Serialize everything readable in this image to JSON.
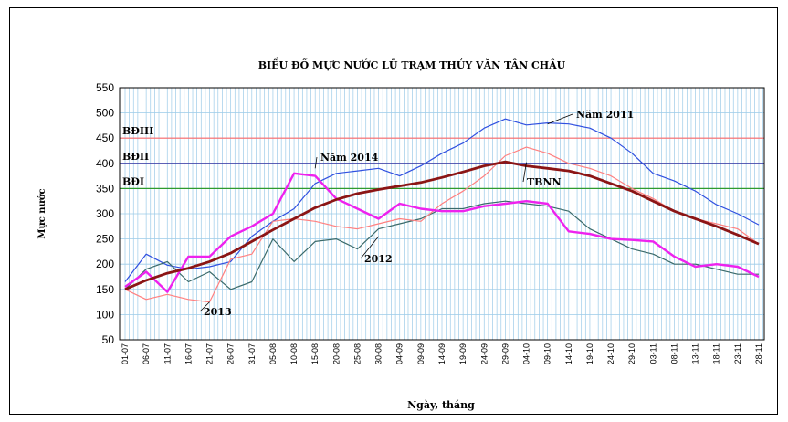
{
  "chart_data": {
    "type": "line",
    "title": "BIỂU ĐỒ MỰC NƯỚC LŨ TRẠM THỦY VĂN TÂN CHÂU",
    "xlabel": "Ngày, tháng",
    "ylabel": "Mực nước",
    "ylim": [
      50,
      550
    ],
    "yticks": [
      50,
      100,
      150,
      200,
      250,
      300,
      350,
      400,
      450,
      500,
      550
    ],
    "grid": true,
    "categories": [
      "01-07",
      "06-07",
      "11-07",
      "16-07",
      "21-07",
      "26-07",
      "31-07",
      "05-08",
      "10-08",
      "15-08",
      "20-08",
      "25-08",
      "30-08",
      "04-09",
      "09-09",
      "14-09",
      "19-09",
      "24-09",
      "29-09",
      "04-10",
      "09-10",
      "14-10",
      "19-10",
      "24-10",
      "29-10",
      "03-11",
      "08-11",
      "13-11",
      "18-11",
      "23-11",
      "28-11"
    ],
    "thresholds": [
      {
        "name": "BĐIII",
        "value": 450,
        "color": "#ff6a6a"
      },
      {
        "name": "BĐII",
        "value": 400,
        "color": "#3030a0"
      },
      {
        "name": "BĐI",
        "value": 350,
        "color": "#2e9b2e"
      }
    ],
    "series": [
      {
        "name": "Năm 2011",
        "color": "#3050e0",
        "values": [
          165,
          220,
          198,
          190,
          195,
          205,
          255,
          285,
          310,
          360,
          380,
          385,
          390,
          375,
          395,
          420,
          440,
          470,
          488,
          476,
          480,
          478,
          470,
          450,
          420,
          380,
          365,
          345,
          318,
          300,
          278
        ]
      },
      {
        "name": "2012",
        "color": "#3a6a6a",
        "values": [
          150,
          190,
          205,
          165,
          185,
          150,
          165,
          250,
          205,
          245,
          250,
          230,
          270,
          280,
          290,
          310,
          310,
          320,
          325,
          320,
          315,
          305,
          270,
          250,
          230,
          220,
          200,
          200,
          190,
          180,
          180
        ]
      },
      {
        "name": "2013",
        "color": "#ff8080",
        "values": [
          150,
          130,
          140,
          130,
          125,
          210,
          220,
          285,
          290,
          285,
          275,
          270,
          280,
          290,
          285,
          320,
          345,
          375,
          415,
          432,
          420,
          400,
          390,
          375,
          350,
          330,
          305,
          290,
          280,
          270,
          240
        ]
      },
      {
        "name": "Năm 2014",
        "color": "#ee22ee",
        "values": [
          155,
          185,
          145,
          215,
          215,
          255,
          275,
          300,
          380,
          375,
          330,
          310,
          290,
          320,
          310,
          305,
          305,
          315,
          320,
          325,
          320,
          265,
          260,
          250,
          248,
          245,
          215,
          195,
          200,
          195,
          175
        ]
      },
      {
        "name": "TBNN",
        "color": "#8b1515",
        "values": [
          150,
          168,
          182,
          192,
          205,
          222,
          245,
          268,
          290,
          312,
          328,
          340,
          348,
          355,
          362,
          372,
          383,
          395,
          403,
          395,
          390,
          385,
          375,
          360,
          345,
          325,
          305,
          290,
          275,
          258,
          240
        ]
      }
    ]
  }
}
